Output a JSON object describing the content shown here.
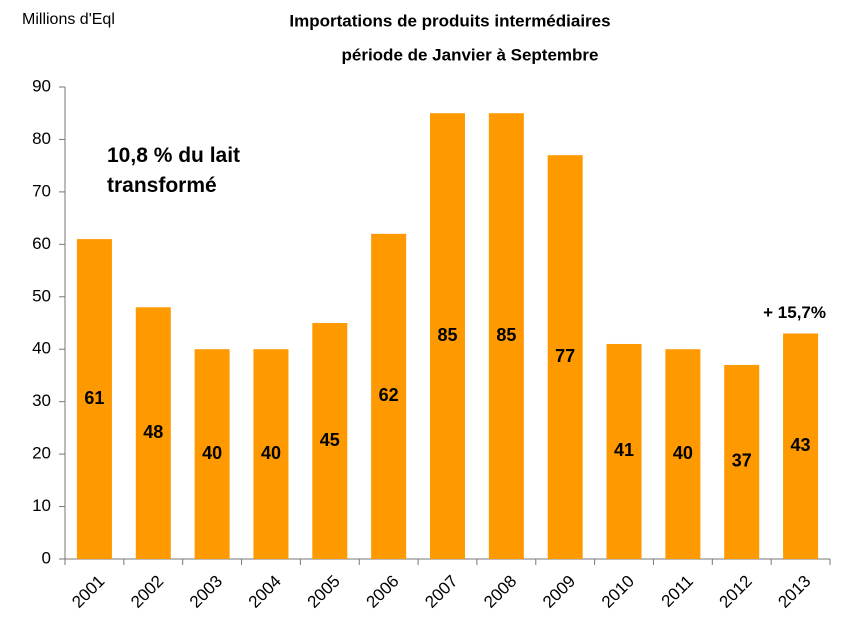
{
  "chart_data": {
    "type": "bar",
    "title": "Importations de produits intermédiaires",
    "subtitle": "période de Janvier à Septembre",
    "y_axis_label": "Millions d'Eql",
    "annotation": "10,8 % du lait transformé",
    "bar_annotation": "+ 15,7%",
    "categories": [
      "2001",
      "2002",
      "2003",
      "2004",
      "2005",
      "2006",
      "2007",
      "2008",
      "2009",
      "2010",
      "2011",
      "2012",
      "2013"
    ],
    "values": [
      61,
      48,
      40,
      40,
      45,
      62,
      85,
      85,
      77,
      41,
      40,
      37,
      43
    ],
    "color": "#ff9900",
    "ylim": [
      0,
      90
    ],
    "yticks": [
      0,
      10,
      20,
      30,
      40,
      50,
      60,
      70,
      80,
      90
    ],
    "grid": false
  }
}
